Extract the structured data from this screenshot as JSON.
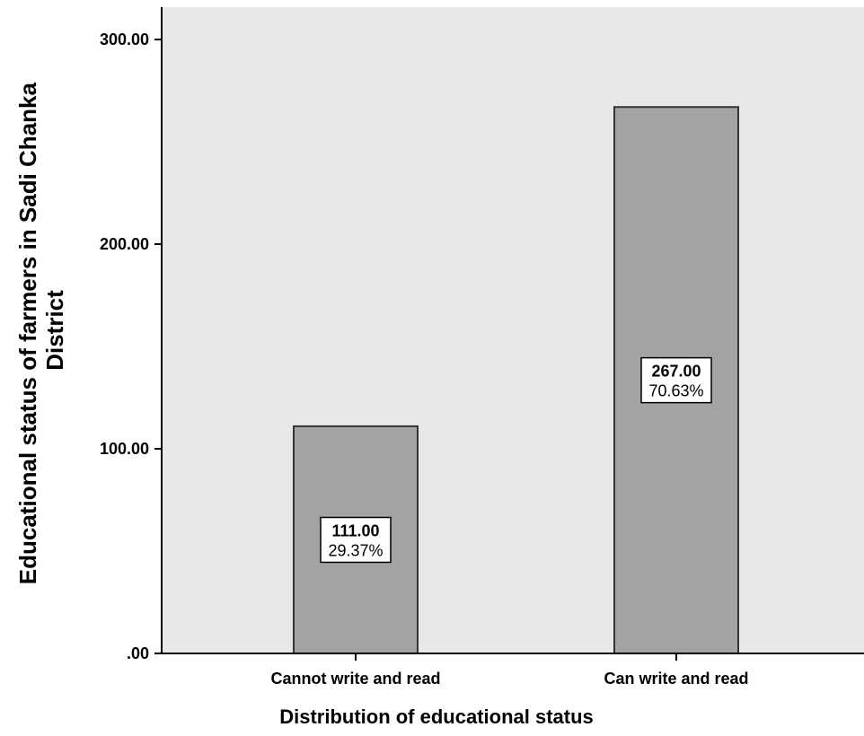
{
  "chart_data": {
    "type": "bar",
    "title": "",
    "xlabel": "Distribution of educational status",
    "ylabel_lines": [
      "Educational status of farmers in Sadi Chanka",
      "District"
    ],
    "categories": [
      "Cannot write and read",
      "Can write and read"
    ],
    "values": [
      111,
      267
    ],
    "value_labels": [
      "111.00",
      "267.00"
    ],
    "percent_labels": [
      "29.37%",
      "70.63%"
    ],
    "ylim": [
      0,
      315
    ],
    "yticks": [
      0,
      100,
      200,
      300
    ],
    "ytick_labels": [
      ".00",
      "100.00",
      "200.00",
      "300.00"
    ],
    "grid": false,
    "legend": "none",
    "colors": {
      "plot_background": "#e8e8e8",
      "bar_fill": "#a3a3a3",
      "bar_stroke": "#333333",
      "axis": "#000000",
      "label_box_fill": "#ffffff"
    }
  }
}
